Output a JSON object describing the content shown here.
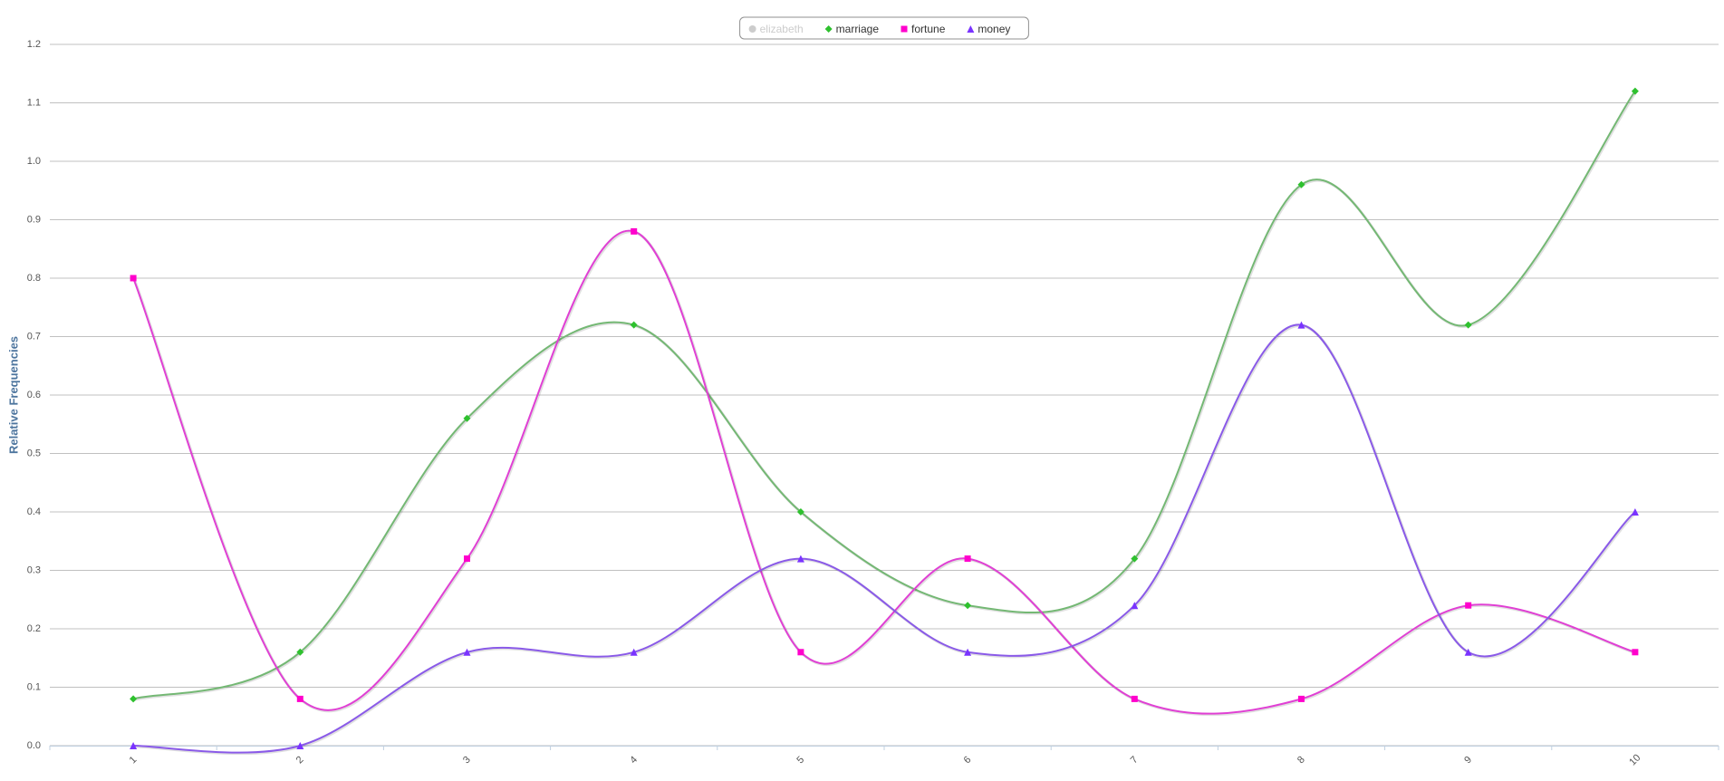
{
  "chart_data": {
    "type": "line",
    "smooth": true,
    "y_axis_label": "Relative Frequencies",
    "categories": [
      "1",
      "2",
      "3",
      "4",
      "5",
      "6",
      "7",
      "8",
      "9",
      "10"
    ],
    "series": [
      {
        "name": "elizabeth",
        "color": "#cccccc",
        "marker": "circle",
        "visible": false
      },
      {
        "name": "marriage",
        "color": "#2ec12e",
        "line_color": "#74b874",
        "marker": "diamond",
        "values": [
          0.08,
          0.16,
          0.56,
          0.72,
          0.4,
          0.24,
          0.32,
          0.96,
          0.72,
          1.12
        ]
      },
      {
        "name": "fortune",
        "color": "#ff00cc",
        "line_color": "#e040d4",
        "marker": "square",
        "values": [
          0.8,
          0.08,
          0.32,
          0.88,
          0.16,
          0.32,
          0.08,
          0.08,
          0.24,
          0.16
        ]
      },
      {
        "name": "money",
        "color": "#7a33ff",
        "line_color": "#8a5ae8",
        "marker": "triangle",
        "values": [
          0,
          0,
          0.16,
          0.16,
          0.32,
          0.16,
          0.24,
          0.72,
          0.16,
          0.4
        ]
      }
    ],
    "ylim": [
      0,
      1.2
    ],
    "yticks": [
      {
        "value": 0,
        "label": "0.0"
      },
      0.1,
      0.2,
      0.3,
      0.4,
      0.5,
      0.6,
      0.7,
      0.8,
      0.9,
      {
        "value": 1,
        "label": "1.0"
      },
      1.1,
      1.2
    ],
    "grid": true,
    "legend": "top"
  }
}
